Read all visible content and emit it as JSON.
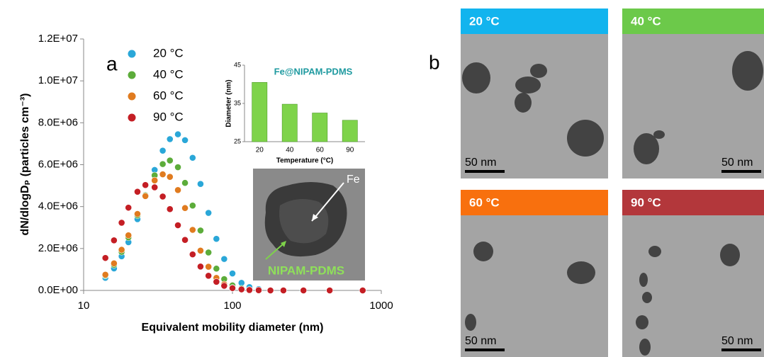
{
  "chart_data": [
    {
      "type": "scatter",
      "panel_label": "a",
      "x_label": "Equivalent mobility diameter (nm)",
      "y_label": "dN/dlogDₚ (particles cm⁻³)",
      "x_scale": "log",
      "xlim": [
        10,
        1000
      ],
      "xticks": [
        10,
        100,
        1000
      ],
      "ylim": [
        0,
        12000000
      ],
      "yticks": [
        {
          "value": 0,
          "label": "0.0E+00"
        },
        {
          "value": 2000000,
          "label": "2.0E+06"
        },
        {
          "value": 4000000,
          "label": "4.0E+06"
        },
        {
          "value": 6000000,
          "label": "6.0E+06"
        },
        {
          "value": 8000000,
          "label": "8.0E+06"
        },
        {
          "value": 10000000,
          "label": "1.0E+07"
        },
        {
          "value": 12000000,
          "label": "1.2E+07"
        }
      ],
      "legend": "upper-left",
      "x": [
        14,
        16,
        18,
        20,
        23,
        26,
        30,
        34,
        38,
        43,
        48,
        54,
        61,
        69,
        78,
        88,
        100,
        115,
        130,
        150,
        180,
        220,
        300,
        450,
        750
      ],
      "series": [
        {
          "name": "20 °C",
          "color": "#2aa7d8",
          "values": [
            600000,
            1050000,
            1630000,
            2300000,
            3400000,
            4490000,
            5750000,
            6670000,
            7220000,
            7450000,
            7170000,
            6330000,
            5080000,
            3700000,
            2460000,
            1500000,
            810000,
            360000,
            160000,
            60000,
            10000,
            0,
            0,
            0,
            0
          ]
        },
        {
          "name": "40 °C",
          "color": "#5cac3a",
          "values": [
            710000,
            1220000,
            1840000,
            2530000,
            3580000,
            4540000,
            5490000,
            6030000,
            6200000,
            5880000,
            5130000,
            4050000,
            2860000,
            1810000,
            1040000,
            540000,
            240000,
            90000,
            30000,
            10000,
            0,
            0,
            0,
            0,
            0
          ]
        },
        {
          "name": "60 °C",
          "color": "#e07b1f",
          "values": [
            750000,
            1290000,
            1940000,
            2630000,
            3650000,
            4500000,
            5250000,
            5540000,
            5420000,
            4790000,
            3930000,
            2890000,
            1900000,
            1130000,
            600000,
            290000,
            120000,
            40000,
            10000,
            0,
            0,
            0,
            0,
            0,
            0
          ]
        },
        {
          "name": "90 °C",
          "color": "#c41e24",
          "values": [
            1550000,
            2390000,
            3230000,
            3950000,
            4710000,
            5030000,
            4920000,
            4480000,
            3880000,
            3110000,
            2410000,
            1720000,
            1140000,
            700000,
            410000,
            220000,
            110000,
            50000,
            20000,
            10000,
            0,
            0,
            0,
            0,
            0
          ]
        }
      ],
      "image_annotations": [
        "Fe",
        "NIPAM-PDMS"
      ]
    },
    {
      "type": "bar",
      "title": "Fe@NIPAM-PDMS",
      "x_label": "Temperature (°C)",
      "y_label": "Diameter (nm)",
      "categories": [
        "20",
        "40",
        "60",
        "90"
      ],
      "values": [
        40.5,
        34.8,
        32.5,
        30.6
      ],
      "color": "#7ed34a",
      "ylim": [
        25,
        45
      ],
      "yticks": [
        25,
        35,
        45
      ]
    }
  ],
  "panel_b": {
    "label": "b",
    "panels": [
      {
        "title": "20 °C",
        "color": "#12b4ee",
        "scale_bar": "50 nm"
      },
      {
        "title": "40 °C",
        "color": "#6cc94a",
        "scale_bar": "50 nm"
      },
      {
        "title": "60 °C",
        "color": "#f8700e",
        "scale_bar": "50 nm"
      },
      {
        "title": "90 °C",
        "color": "#b3373b",
        "scale_bar": "50 nm"
      }
    ]
  }
}
